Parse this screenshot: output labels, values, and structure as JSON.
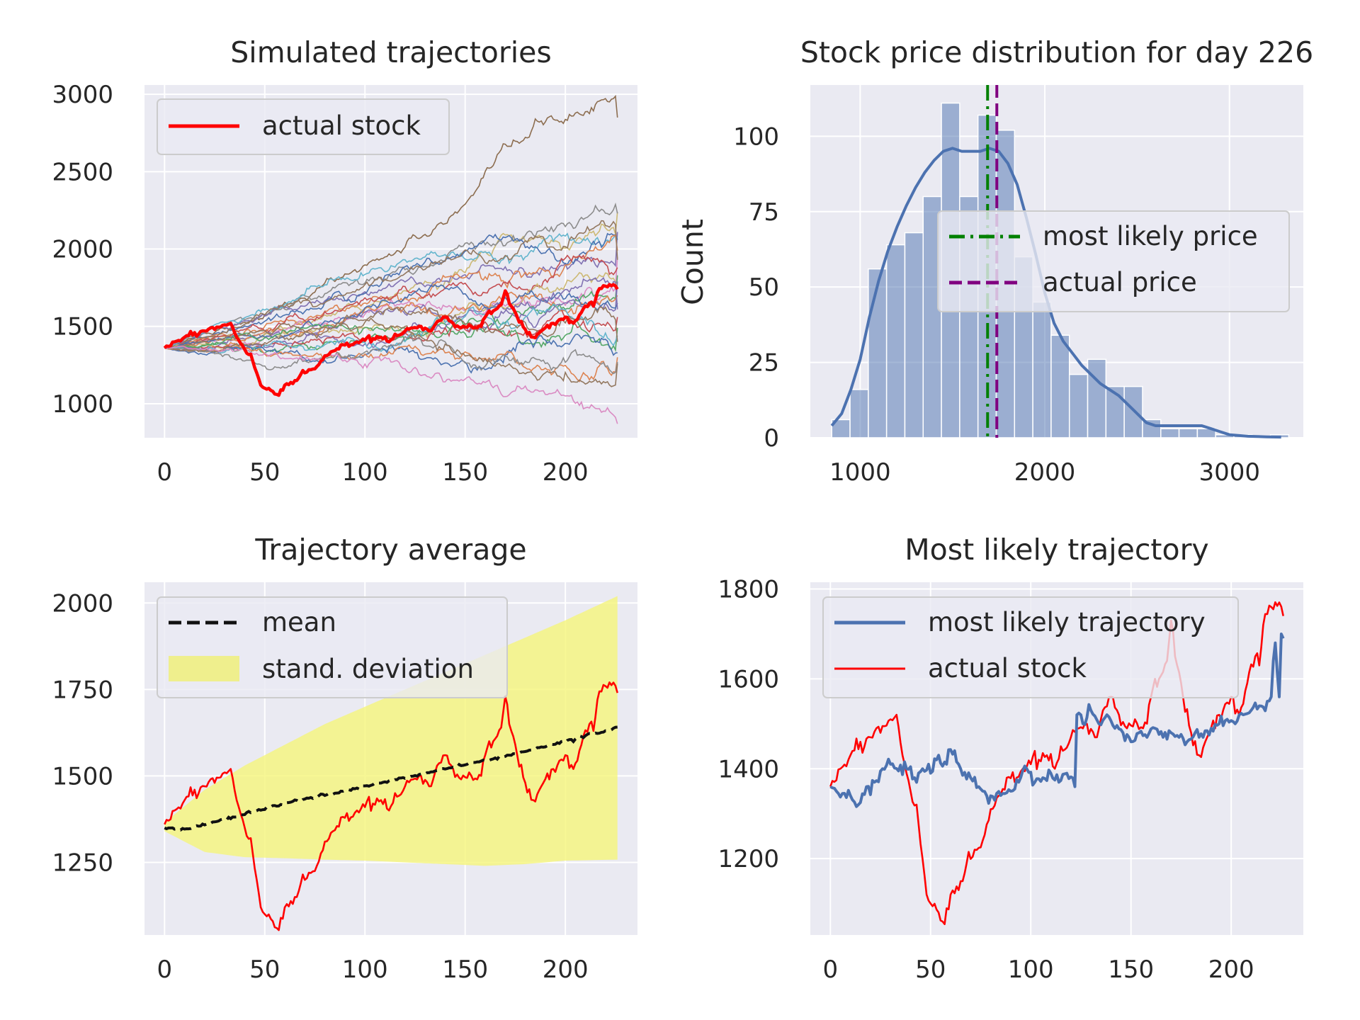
{
  "chart_data": [
    {
      "id": "simulated",
      "type": "line",
      "title": "Simulated trajectories",
      "xlim": [
        -10,
        236
      ],
      "ylim": [
        780,
        3060
      ],
      "xticks": [
        0,
        50,
        100,
        150,
        200
      ],
      "yticks": [
        1000,
        1500,
        2000,
        2500,
        3000
      ],
      "x_tick_labels": [
        "0",
        "50",
        "100",
        "150",
        "200"
      ],
      "y_tick_labels": [
        "1000",
        "1500",
        "2000",
        "2500",
        "3000"
      ],
      "legend": {
        "position": "top-left",
        "entries": [
          {
            "label": "actual stock",
            "color": "#ff0000",
            "style": "solid"
          }
        ]
      },
      "simulated_end_values": [
        2850,
        2240,
        2230,
        2110,
        2070,
        2060,
        1990,
        1950,
        1930,
        1880,
        1830,
        1790,
        1750,
        1700,
        1650,
        1610,
        1560,
        1490,
        1440,
        1400,
        1330,
        1300,
        1270,
        1260,
        870
      ],
      "simulated_colors": [
        "#8c6d4f",
        "#ccb974",
        "#8c8c8c",
        "#8172b3",
        "#64b5cd",
        "#4c72b0",
        "#dd8452",
        "#da8bc3",
        "#937860",
        "#c44e52",
        "#55a868",
        "#8172b3",
        "#ccb974",
        "#dd8452",
        "#4c72b0",
        "#8172b3",
        "#c44e52",
        "#55a868",
        "#64b5cd",
        "#937860",
        "#4c72b0",
        "#dd8452",
        "#8c8c8c",
        "#937860",
        "#da8bc3"
      ],
      "actual_stock_keypoints": [
        [
          0,
          1360
        ],
        [
          5,
          1400
        ],
        [
          10,
          1430
        ],
        [
          15,
          1460
        ],
        [
          20,
          1470
        ],
        [
          25,
          1480
        ],
        [
          30,
          1510
        ],
        [
          33,
          1520
        ],
        [
          36,
          1430
        ],
        [
          40,
          1350
        ],
        [
          43,
          1320
        ],
        [
          46,
          1200
        ],
        [
          48,
          1120
        ],
        [
          50,
          1100
        ],
        [
          54,
          1080
        ],
        [
          56,
          1060
        ],
        [
          60,
          1120
        ],
        [
          64,
          1130
        ],
        [
          68,
          1190
        ],
        [
          72,
          1220
        ],
        [
          76,
          1240
        ],
        [
          80,
          1310
        ],
        [
          84,
          1340
        ],
        [
          88,
          1380
        ],
        [
          92,
          1370
        ],
        [
          96,
          1400
        ],
        [
          100,
          1410
        ],
        [
          104,
          1420
        ],
        [
          108,
          1430
        ],
        [
          112,
          1400
        ],
        [
          116,
          1440
        ],
        [
          120,
          1470
        ],
        [
          124,
          1490
        ],
        [
          128,
          1500
        ],
        [
          132,
          1470
        ],
        [
          136,
          1530
        ],
        [
          140,
          1560
        ],
        [
          144,
          1520
        ],
        [
          148,
          1490
        ],
        [
          152,
          1510
        ],
        [
          156,
          1490
        ],
        [
          160,
          1560
        ],
        [
          164,
          1600
        ],
        [
          168,
          1640
        ],
        [
          170,
          1730
        ],
        [
          172,
          1650
        ],
        [
          176,
          1560
        ],
        [
          180,
          1480
        ],
        [
          184,
          1430
        ],
        [
          188,
          1470
        ],
        [
          192,
          1490
        ],
        [
          196,
          1530
        ],
        [
          200,
          1560
        ],
        [
          204,
          1520
        ],
        [
          208,
          1590
        ],
        [
          212,
          1650
        ],
        [
          214,
          1630
        ],
        [
          216,
          1720
        ],
        [
          220,
          1760
        ],
        [
          224,
          1770
        ],
        [
          226,
          1740
        ]
      ]
    },
    {
      "id": "distribution",
      "type": "bar",
      "title": "Stock price distribution for day 226",
      "ylabel": "Count",
      "xlim": [
        730,
        3400
      ],
      "ylim": [
        0,
        117
      ],
      "xticks": [
        1000,
        2000,
        3000
      ],
      "yticks": [
        0,
        25,
        50,
        75,
        100
      ],
      "x_tick_labels": [
        "1000",
        "2000",
        "3000"
      ],
      "y_tick_labels": [
        "0",
        "25",
        "50",
        "75",
        "100"
      ],
      "bin_start": 846,
      "bin_width": 99,
      "counts": [
        6,
        16,
        56,
        64,
        68,
        80,
        111,
        80,
        107,
        102,
        60,
        45,
        34,
        21,
        26,
        17,
        17,
        6,
        3,
        3,
        3,
        1,
        1,
        0,
        1
      ],
      "kde": [
        [
          846,
          4
        ],
        [
          900,
          8
        ],
        [
          950,
          16
        ],
        [
          1000,
          26
        ],
        [
          1050,
          40
        ],
        [
          1100,
          52
        ],
        [
          1150,
          62
        ],
        [
          1200,
          70
        ],
        [
          1250,
          77
        ],
        [
          1300,
          83
        ],
        [
          1350,
          88
        ],
        [
          1400,
          92
        ],
        [
          1450,
          95
        ],
        [
          1500,
          96
        ],
        [
          1550,
          95
        ],
        [
          1600,
          95
        ],
        [
          1650,
          95
        ],
        [
          1700,
          96
        ],
        [
          1750,
          95
        ],
        [
          1800,
          91
        ],
        [
          1850,
          84
        ],
        [
          1900,
          73
        ],
        [
          1950,
          61
        ],
        [
          2000,
          48
        ],
        [
          2050,
          38
        ],
        [
          2100,
          32
        ],
        [
          2150,
          28
        ],
        [
          2200,
          24
        ],
        [
          2250,
          21
        ],
        [
          2300,
          18
        ],
        [
          2350,
          16
        ],
        [
          2400,
          14
        ],
        [
          2450,
          11
        ],
        [
          2500,
          8
        ],
        [
          2550,
          5
        ],
        [
          2600,
          4
        ],
        [
          2650,
          4
        ],
        [
          2700,
          4
        ],
        [
          2750,
          4
        ],
        [
          2800,
          4
        ],
        [
          2850,
          4
        ],
        [
          2900,
          3
        ],
        [
          2950,
          2
        ],
        [
          3000,
          1
        ],
        [
          3100,
          0.5
        ],
        [
          3200,
          0.3
        ],
        [
          3280,
          0.2
        ]
      ],
      "most_likely_price": 1690,
      "actual_price": 1740,
      "legend": {
        "position": "center-right",
        "entries": [
          {
            "label": "most likely price",
            "color": "#008000",
            "style": "dashdot"
          },
          {
            "label": "actual price",
            "color": "#800080",
            "style": "dashed"
          }
        ]
      }
    },
    {
      "id": "average",
      "type": "line",
      "title": "Trajectory average",
      "xlim": [
        -10,
        236
      ],
      "ylim": [
        1040,
        2060
      ],
      "xticks": [
        0,
        50,
        100,
        150,
        200
      ],
      "yticks": [
        1250,
        1500,
        1750,
        2000
      ],
      "x_tick_labels": [
        "0",
        "50",
        "100",
        "150",
        "200"
      ],
      "y_tick_labels": [
        "1250",
        "1500",
        "1750",
        "2000"
      ],
      "legend": {
        "position": "top-left",
        "entries": [
          {
            "label": "mean",
            "color": "#111111",
            "style": "dashed"
          },
          {
            "label": "stand. deviation",
            "color": "#f0f07a",
            "style": "fill"
          }
        ]
      },
      "mean": [
        [
          0,
          1350
        ],
        [
          10,
          1345
        ],
        [
          20,
          1360
        ],
        [
          40,
          1390
        ],
        [
          60,
          1420
        ],
        [
          80,
          1445
        ],
        [
          100,
          1470
        ],
        [
          120,
          1495
        ],
        [
          140,
          1520
        ],
        [
          160,
          1545
        ],
        [
          180,
          1570
        ],
        [
          200,
          1600
        ],
        [
          226,
          1640
        ]
      ],
      "band_upper": [
        [
          0,
          1365
        ],
        [
          20,
          1460
        ],
        [
          40,
          1530
        ],
        [
          60,
          1590
        ],
        [
          80,
          1650
        ],
        [
          100,
          1700
        ],
        [
          120,
          1750
        ],
        [
          140,
          1800
        ],
        [
          160,
          1850
        ],
        [
          180,
          1900
        ],
        [
          200,
          1950
        ],
        [
          226,
          2020
        ]
      ],
      "band_lower": [
        [
          0,
          1340
        ],
        [
          20,
          1280
        ],
        [
          40,
          1265
        ],
        [
          60,
          1262
        ],
        [
          80,
          1258
        ],
        [
          100,
          1255
        ],
        [
          120,
          1250
        ],
        [
          140,
          1245
        ],
        [
          160,
          1240
        ],
        [
          180,
          1245
        ],
        [
          200,
          1255
        ],
        [
          226,
          1258
        ]
      ]
    },
    {
      "id": "most_likely",
      "type": "line",
      "title": "Most likely trajectory",
      "xlim": [
        -10,
        236
      ],
      "ylim": [
        1030,
        1815
      ],
      "xticks": [
        0,
        50,
        100,
        150,
        200
      ],
      "yticks": [
        1200,
        1400,
        1600,
        1800
      ],
      "x_tick_labels": [
        "0",
        "50",
        "100",
        "150",
        "200"
      ],
      "y_tick_labels": [
        "1200",
        "1400",
        "1600",
        "1800"
      ],
      "legend": {
        "position": "top-left",
        "entries": [
          {
            "label": "most likely trajectory",
            "color": "#4c72b0",
            "style": "solid"
          },
          {
            "label": "actual stock",
            "color": "#ff0000",
            "style": "solid"
          }
        ]
      },
      "most_likely_keypoints": [
        [
          0,
          1360
        ],
        [
          3,
          1350
        ],
        [
          6,
          1345
        ],
        [
          10,
          1340
        ],
        [
          14,
          1320
        ],
        [
          18,
          1360
        ],
        [
          22,
          1370
        ],
        [
          26,
          1400
        ],
        [
          30,
          1410
        ],
        [
          34,
          1395
        ],
        [
          38,
          1400
        ],
        [
          42,
          1380
        ],
        [
          46,
          1400
        ],
        [
          50,
          1390
        ],
        [
          54,
          1430
        ],
        [
          58,
          1410
        ],
        [
          62,
          1440
        ],
        [
          65,
          1400
        ],
        [
          70,
          1380
        ],
        [
          74,
          1360
        ],
        [
          78,
          1340
        ],
        [
          82,
          1330
        ],
        [
          86,
          1345
        ],
        [
          90,
          1350
        ],
        [
          94,
          1370
        ],
        [
          98,
          1400
        ],
        [
          102,
          1370
        ],
        [
          106,
          1380
        ],
        [
          110,
          1390
        ],
        [
          114,
          1370
        ],
        [
          118,
          1390
        ],
        [
          122,
          1360
        ],
        [
          123,
          1520
        ],
        [
          126,
          1500
        ],
        [
          130,
          1530
        ],
        [
          134,
          1500
        ],
        [
          138,
          1520
        ],
        [
          142,
          1490
        ],
        [
          146,
          1480
        ],
        [
          150,
          1460
        ],
        [
          154,
          1480
        ],
        [
          158,
          1470
        ],
        [
          162,
          1490
        ],
        [
          166,
          1470
        ],
        [
          170,
          1480
        ],
        [
          174,
          1470
        ],
        [
          178,
          1460
        ],
        [
          182,
          1480
        ],
        [
          186,
          1470
        ],
        [
          190,
          1490
        ],
        [
          194,
          1500
        ],
        [
          198,
          1510
        ],
        [
          202,
          1500
        ],
        [
          206,
          1520
        ],
        [
          210,
          1530
        ],
        [
          214,
          1540
        ],
        [
          218,
          1550
        ],
        [
          220,
          1560
        ],
        [
          221,
          1640
        ],
        [
          222,
          1680
        ],
        [
          224,
          1560
        ],
        [
          225,
          1700
        ],
        [
          226,
          1690
        ]
      ]
    }
  ]
}
